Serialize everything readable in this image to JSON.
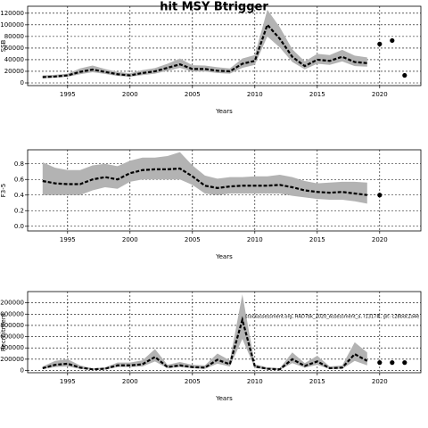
{
  "title": "hit MSY Btrigger",
  "chart_data": [
    {
      "type": "line",
      "ylabel": "SSB",
      "xlabel": "Years",
      "x": [
        1993,
        1994,
        1995,
        1996,
        1997,
        1998,
        1999,
        2000,
        2001,
        2002,
        2003,
        2004,
        2005,
        2006,
        2007,
        2008,
        2009,
        2010,
        2011,
        2012,
        2013,
        2014,
        2015,
        2016,
        2017,
        2018,
        2019
      ],
      "series": [
        {
          "color": "#000000",
          "values": [
            10000,
            11000,
            13000,
            19000,
            23000,
            19000,
            15000,
            13000,
            17000,
            20000,
            26000,
            32000,
            24000,
            24000,
            21000,
            20000,
            33000,
            38000,
            100000,
            76000,
            45000,
            29000,
            40000,
            38000,
            45000,
            36000,
            34000
          ],
          "low": [
            8000,
            9000,
            10500,
            15000,
            18500,
            15500,
            12000,
            10500,
            13500,
            16000,
            21000,
            26000,
            19500,
            19500,
            17000,
            16000,
            26000,
            31000,
            80000,
            61000,
            36000,
            23500,
            33000,
            31000,
            37000,
            29000,
            28000
          ],
          "high": [
            13000,
            14000,
            16000,
            25000,
            30000,
            24000,
            19000,
            16500,
            22000,
            25500,
            33000,
            42000,
            30500,
            30000,
            27000,
            25000,
            42000,
            48000,
            126000,
            96000,
            58000,
            37000,
            50000,
            48000,
            57000,
            47000,
            44000
          ]
        }
      ],
      "points": {
        "x": [
          2020,
          2021,
          2022
        ],
        "values": [
          67000,
          73000,
          13000
        ]
      },
      "band_color": "#b3b3b3",
      "xlim": [
        1991.8,
        2023.3
      ],
      "xticks": [
        1995,
        2000,
        2005,
        2010,
        2015,
        2020
      ],
      "ylim": [
        -4600,
        132000
      ],
      "yticks": [
        0,
        20000,
        40000,
        60000,
        80000,
        100000,
        120000
      ],
      "grid": true
    },
    {
      "type": "line",
      "ylabel": "F3-5",
      "xlabel": "Years",
      "x": [
        1993,
        1994,
        1995,
        1996,
        1997,
        1998,
        1999,
        2000,
        2001,
        2002,
        2003,
        2004,
        2005,
        2006,
        2007,
        2008,
        2009,
        2010,
        2011,
        2012,
        2013,
        2014,
        2015,
        2016,
        2017,
        2018,
        2019
      ],
      "series": [
        {
          "color": "#000000",
          "values": [
            0.58,
            0.55,
            0.54,
            0.54,
            0.6,
            0.63,
            0.6,
            0.68,
            0.72,
            0.73,
            0.73,
            0.74,
            0.64,
            0.52,
            0.49,
            0.51,
            0.52,
            0.52,
            0.52,
            0.53,
            0.5,
            0.46,
            0.44,
            0.43,
            0.44,
            0.42,
            0.4
          ],
          "low": [
            0.4,
            0.4,
            0.4,
            0.4,
            0.46,
            0.5,
            0.48,
            0.57,
            0.6,
            0.6,
            0.6,
            0.6,
            0.53,
            0.42,
            0.4,
            0.42,
            0.42,
            0.42,
            0.42,
            0.42,
            0.39,
            0.37,
            0.35,
            0.34,
            0.34,
            0.32,
            0.29
          ],
          "high": [
            0.82,
            0.75,
            0.72,
            0.72,
            0.78,
            0.8,
            0.77,
            0.84,
            0.88,
            0.88,
            0.9,
            0.95,
            0.78,
            0.65,
            0.61,
            0.63,
            0.63,
            0.64,
            0.64,
            0.66,
            0.63,
            0.58,
            0.55,
            0.56,
            0.57,
            0.57,
            0.56
          ]
        }
      ],
      "points": {
        "x": [
          2020
        ],
        "values": [
          0.4
        ]
      },
      "band_color": "#b3b3b3",
      "xlim": [
        1991.8,
        2023.3
      ],
      "xticks": [
        1995,
        2000,
        2005,
        2010,
        2015,
        2020
      ],
      "ylim": [
        -0.06,
        0.98
      ],
      "yticks": [
        {
          "value": 0,
          "label": "0.0"
        },
        0.2,
        0.4,
        0.6,
        0.8
      ],
      "grid": true
    },
    {
      "type": "line",
      "ylabel": "Recruitment",
      "xlabel": "Years",
      "annotation": "stockassessment.org, HAD7bk_2020_Assessment_a, r1317#, git: c28bdc2a4e",
      "x": [
        1993,
        1994,
        1995,
        1996,
        1997,
        1998,
        1999,
        2000,
        2001,
        2002,
        2003,
        2004,
        2005,
        2006,
        2007,
        2008,
        2009,
        2010,
        2011,
        2012,
        2013,
        2014,
        2015,
        2016,
        2017,
        2018,
        2019
      ],
      "series": [
        {
          "color": "#000000",
          "values": [
            40000,
            100000,
            120000,
            50000,
            20000,
            30000,
            90000,
            90000,
            110000,
            240000,
            60000,
            90000,
            60000,
            50000,
            190000,
            110000,
            900000,
            70000,
            30000,
            20000,
            200000,
            80000,
            160000,
            40000,
            50000,
            290000,
            170000
          ],
          "low": [
            25000,
            60000,
            70000,
            30000,
            12000,
            18000,
            60000,
            60000,
            70000,
            160000,
            40000,
            60000,
            40000,
            30000,
            120000,
            70000,
            560000,
            45000,
            18000,
            12000,
            130000,
            50000,
            100000,
            25000,
            30000,
            170000,
            90000
          ],
          "high": [
            70000,
            170000,
            200000,
            90000,
            35000,
            55000,
            140000,
            140000,
            180000,
            380000,
            100000,
            150000,
            100000,
            90000,
            300000,
            180000,
            1350000,
            110000,
            55000,
            40000,
            320000,
            130000,
            260000,
            70000,
            90000,
            500000,
            320000
          ]
        }
      ],
      "points": {
        "x": [
          2020,
          2021,
          2022
        ],
        "values": [
          140000,
          140000,
          140000
        ]
      },
      "band_color": "#b3b3b3",
      "xlim": [
        1991.8,
        2023.3
      ],
      "xticks": [
        1995,
        2000,
        2005,
        2010,
        2015,
        2020
      ],
      "ylim": [
        -40000,
        1400000
      ],
      "yticks": [
        0,
        200000,
        400000,
        600000,
        800000,
        1000000,
        1200000
      ],
      "grid": true
    }
  ]
}
